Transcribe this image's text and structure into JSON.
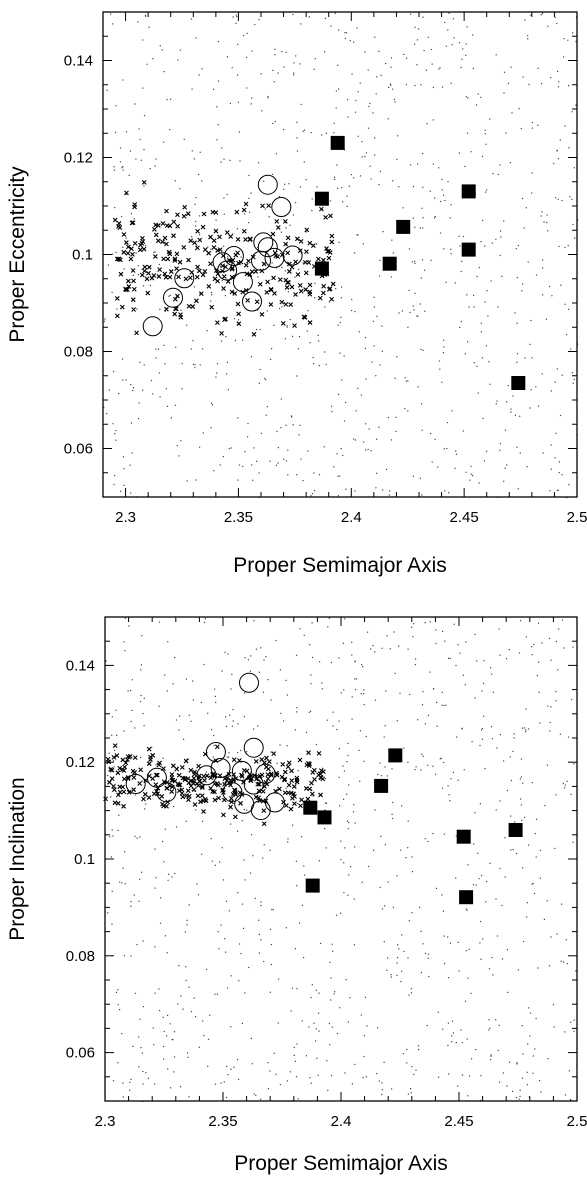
{
  "chart_data": [
    {
      "type": "scatter",
      "xlabel": "Proper Semimajor Axis",
      "ylabel": "Proper Eccentricity",
      "xlim": [
        2.29,
        2.5
      ],
      "ylim": [
        0.05,
        0.15
      ],
      "xticks": [
        2.3,
        2.35,
        2.4,
        2.45,
        2.5
      ],
      "xtick_labels": [
        "2.3",
        "2.35",
        "2.4",
        "2.45",
        "2.5"
      ],
      "yticks": [
        0.06,
        0.08,
        0.1,
        0.12,
        0.14
      ],
      "ytick_labels": [
        "0.06",
        "0.08",
        "0.1",
        "0.12",
        "0.14"
      ],
      "grid": false,
      "legend": "none",
      "background_points": {
        "marker": "dot",
        "count": 900,
        "seed": 11,
        "note_visible": false
      },
      "series": [
        {
          "marker": "filled-square",
          "points": [
            [
              2.394,
              0.123
            ],
            [
              2.387,
              0.1115
            ],
            [
              2.423,
              0.1057
            ],
            [
              2.452,
              0.113
            ],
            [
              2.452,
              0.101
            ],
            [
              2.387,
              0.0971
            ],
            [
              2.417,
              0.0981
            ],
            [
              2.474,
              0.0735
            ]
          ]
        },
        {
          "marker": "open-circle",
          "points": [
            [
              2.363,
              0.1144
            ],
            [
              2.369,
              0.1098
            ],
            [
              2.361,
              0.1025
            ],
            [
              2.363,
              0.1015
            ],
            [
              2.374,
              0.0998
            ],
            [
              2.366,
              0.0993
            ],
            [
              2.36,
              0.0987
            ],
            [
              2.348,
              0.0997
            ],
            [
              2.343,
              0.0984
            ],
            [
              2.345,
              0.0967
            ],
            [
              2.352,
              0.0943
            ],
            [
              2.326,
              0.0951
            ],
            [
              2.321,
              0.0911
            ],
            [
              2.356,
              0.0903
            ],
            [
              2.312,
              0.0852
            ]
          ]
        },
        {
          "marker": "cross",
          "cluster": {
            "x": [
              2.295,
              2.392
            ],
            "y": [
              0.079,
              0.117
            ],
            "count": 270,
            "seed": 5
          }
        }
      ]
    },
    {
      "type": "scatter",
      "xlabel": "Proper Semimajor Axis",
      "ylabel": "Proper Inclination",
      "xlim": [
        2.3,
        2.5
      ],
      "ylim": [
        0.05,
        0.15
      ],
      "xticks": [
        2.3,
        2.35,
        2.4,
        2.45,
        2.5
      ],
      "xtick_labels": [
        "2.3",
        "2.35",
        "2.4",
        "2.45",
        "2.5"
      ],
      "yticks": [
        0.06,
        0.08,
        0.1,
        0.12,
        0.14
      ],
      "ytick_labels": [
        "0.06",
        "0.08",
        "0.1",
        "0.12",
        "0.14"
      ],
      "grid": false,
      "legend": "none",
      "background_points": {
        "marker": "dot",
        "count": 900,
        "seed": 23
      },
      "series": [
        {
          "marker": "filled-square",
          "points": [
            [
              2.423,
              0.1214
            ],
            [
              2.417,
              0.1151
            ],
            [
              2.387,
              0.1106
            ],
            [
              2.393,
              0.1086
            ],
            [
              2.474,
              0.106
            ],
            [
              2.452,
              0.1046
            ],
            [
              2.388,
              0.0945
            ],
            [
              2.453,
              0.0921
            ]
          ]
        },
        {
          "marker": "open-circle",
          "points": [
            [
              2.361,
              0.1364
            ],
            [
              2.347,
              0.1221
            ],
            [
              2.363,
              0.123
            ],
            [
              2.313,
              0.1155
            ],
            [
              2.322,
              0.1168
            ],
            [
              2.326,
              0.1138
            ],
            [
              2.343,
              0.1173
            ],
            [
              2.349,
              0.1188
            ],
            [
              2.354,
              0.1138
            ],
            [
              2.358,
              0.1182
            ],
            [
              2.363,
              0.1154
            ],
            [
              2.368,
              0.1176
            ],
            [
              2.372,
              0.1117
            ],
            [
              2.366,
              0.1101
            ],
            [
              2.359,
              0.1114
            ]
          ]
        },
        {
          "marker": "cross",
          "cluster": {
            "x": [
              2.3,
              2.393
            ],
            "y": [
              0.107,
              0.125
            ],
            "count": 270,
            "seed": 9
          }
        }
      ]
    }
  ]
}
